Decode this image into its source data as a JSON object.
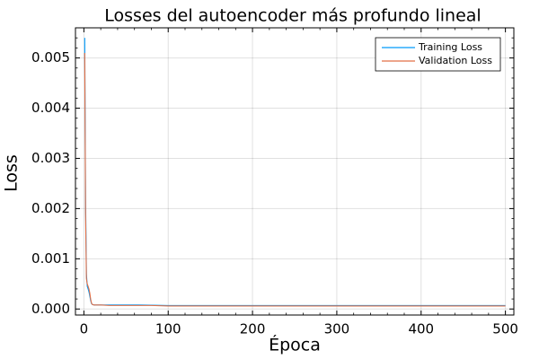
{
  "chart_data": {
    "type": "line",
    "title": "Losses del autoencoder más profundo lineal",
    "xlabel": "Época",
    "ylabel": "Loss",
    "xlim": [
      -10,
      510
    ],
    "ylim": [
      -0.00012,
      0.0056
    ],
    "x_ticks": [
      0,
      100,
      200,
      300,
      400,
      500
    ],
    "x_tick_labels": [
      "0",
      "100",
      "200",
      "300",
      "400",
      "500"
    ],
    "y_ticks": [
      0.0,
      0.001,
      0.002,
      0.003,
      0.004,
      0.005
    ],
    "y_tick_labels": [
      "0.000",
      "0.001",
      "0.002",
      "0.003",
      "0.004",
      "0.005"
    ],
    "grid": true,
    "legend_position": "top-right",
    "series": [
      {
        "name": "Training Loss",
        "color": "#009AFA",
        "x": [
          1,
          2,
          3,
          4,
          5,
          6,
          7,
          8,
          9,
          10,
          12,
          15,
          20,
          30,
          50,
          65,
          80,
          100,
          150,
          200,
          250,
          300,
          350,
          400,
          450,
          500
        ],
        "values": [
          0.0054,
          0.0022,
          0.0007,
          0.00045,
          0.0004,
          0.00034,
          0.00026,
          0.00017,
          0.00011,
          9e-05,
          8e-05,
          8e-05,
          8e-05,
          8e-05,
          8e-05,
          8e-05,
          7.5e-05,
          7e-05,
          7e-05,
          7e-05,
          7e-05,
          7e-05,
          7e-05,
          7e-05,
          7e-05,
          7e-05
        ]
      },
      {
        "name": "Validation Loss",
        "color": "#E26F46",
        "x": [
          1,
          2,
          3,
          4,
          5,
          6,
          7,
          8,
          9,
          10,
          12,
          15,
          20,
          30,
          50,
          65,
          80,
          100,
          150,
          200,
          250,
          300,
          350,
          400,
          450,
          500
        ],
        "values": [
          0.0051,
          0.0019,
          0.0006,
          0.0005,
          0.00045,
          0.0004,
          0.00032,
          0.0002,
          0.00012,
          9e-05,
          8e-05,
          8e-05,
          8e-05,
          7e-05,
          7e-05,
          7e-05,
          7e-05,
          6e-05,
          6e-05,
          6e-05,
          6e-05,
          6e-05,
          6e-05,
          6e-05,
          6e-05,
          6e-05
        ]
      }
    ]
  }
}
